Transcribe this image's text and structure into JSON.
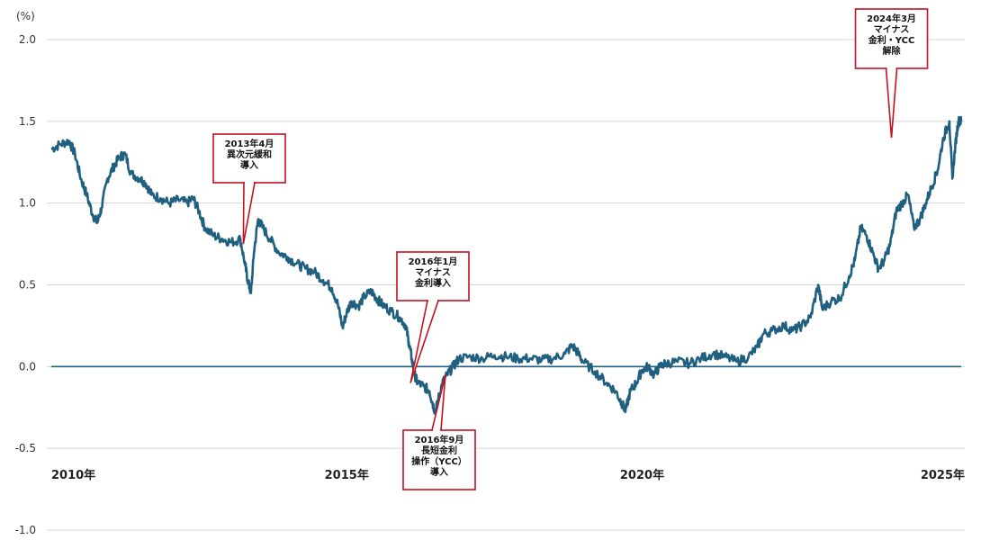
{
  "chart_data": {
    "type": "line",
    "y_unit": "(%)",
    "ylim": [
      -1.0,
      2.0
    ],
    "y_ticks": [
      {
        "value": 2.0,
        "label": "2.0"
      },
      {
        "value": 1.5,
        "label": "1.5"
      },
      {
        "value": 1.0,
        "label": "1.0"
      },
      {
        "value": 0.5,
        "label": "0.5"
      },
      {
        "value": 0.0,
        "label": "0.0"
      },
      {
        "value": -0.5,
        "label": "-0.5"
      },
      {
        "value": -1.0,
        "label": "-1.0"
      }
    ],
    "x_range": [
      2010.0,
      2025.4
    ],
    "x_ticks": [
      {
        "value": 2010.0,
        "label": "2010年"
      },
      {
        "value": 2015.0,
        "label": "2015年"
      },
      {
        "value": 2020.0,
        "label": "2020年"
      },
      {
        "value": 2025.0,
        "label": "2025年"
      }
    ],
    "grid": true,
    "reference_line": 0.0,
    "series_color": "#1f5f7f",
    "series": [
      {
        "points": [
          [
            2010.0,
            1.33
          ],
          [
            2010.15,
            1.36
          ],
          [
            2010.3,
            1.38
          ],
          [
            2010.4,
            1.3
          ],
          [
            2010.5,
            1.15
          ],
          [
            2010.6,
            1.05
          ],
          [
            2010.7,
            0.93
          ],
          [
            2010.78,
            0.88
          ],
          [
            2010.85,
            0.97
          ],
          [
            2010.95,
            1.15
          ],
          [
            2011.05,
            1.22
          ],
          [
            2011.15,
            1.28
          ],
          [
            2011.25,
            1.3
          ],
          [
            2011.35,
            1.18
          ],
          [
            2011.5,
            1.15
          ],
          [
            2011.6,
            1.12
          ],
          [
            2011.7,
            1.05
          ],
          [
            2011.85,
            1.03
          ],
          [
            2012.0,
            1.0
          ],
          [
            2012.15,
            1.02
          ],
          [
            2012.3,
            1.0
          ],
          [
            2012.4,
            1.03
          ],
          [
            2012.5,
            0.95
          ],
          [
            2012.6,
            0.85
          ],
          [
            2012.75,
            0.8
          ],
          [
            2012.9,
            0.78
          ],
          [
            2013.05,
            0.76
          ],
          [
            2013.2,
            0.78
          ],
          [
            2013.28,
            0.62
          ],
          [
            2013.33,
            0.52
          ],
          [
            2013.38,
            0.45
          ],
          [
            2013.43,
            0.7
          ],
          [
            2013.5,
            0.9
          ],
          [
            2013.58,
            0.85
          ],
          [
            2013.7,
            0.78
          ],
          [
            2013.85,
            0.7
          ],
          [
            2014.0,
            0.67
          ],
          [
            2014.15,
            0.63
          ],
          [
            2014.3,
            0.6
          ],
          [
            2014.45,
            0.58
          ],
          [
            2014.6,
            0.53
          ],
          [
            2014.75,
            0.48
          ],
          [
            2014.85,
            0.38
          ],
          [
            2014.93,
            0.24
          ],
          [
            2015.0,
            0.33
          ],
          [
            2015.08,
            0.4
          ],
          [
            2015.2,
            0.37
          ],
          [
            2015.3,
            0.43
          ],
          [
            2015.42,
            0.46
          ],
          [
            2015.5,
            0.42
          ],
          [
            2015.6,
            0.38
          ],
          [
            2015.75,
            0.34
          ],
          [
            2015.9,
            0.3
          ],
          [
            2016.0,
            0.25
          ],
          [
            2016.05,
            0.15
          ],
          [
            2016.1,
            0.05
          ],
          [
            2016.15,
            -0.05
          ],
          [
            2016.2,
            -0.1
          ],
          [
            2016.3,
            -0.12
          ],
          [
            2016.4,
            -0.15
          ],
          [
            2016.45,
            -0.22
          ],
          [
            2016.5,
            -0.28
          ],
          [
            2016.55,
            -0.2
          ],
          [
            2016.62,
            -0.1
          ],
          [
            2016.7,
            -0.05
          ],
          [
            2016.8,
            0.0
          ],
          [
            2016.9,
            0.05
          ],
          [
            2017.1,
            0.06
          ],
          [
            2017.3,
            0.05
          ],
          [
            2017.5,
            0.07
          ],
          [
            2017.7,
            0.06
          ],
          [
            2017.9,
            0.05
          ],
          [
            2018.1,
            0.05
          ],
          [
            2018.3,
            0.04
          ],
          [
            2018.5,
            0.05
          ],
          [
            2018.7,
            0.08
          ],
          [
            2018.82,
            0.13
          ],
          [
            2018.92,
            0.08
          ],
          [
            2019.0,
            0.03
          ],
          [
            2019.2,
            -0.03
          ],
          [
            2019.4,
            -0.1
          ],
          [
            2019.55,
            -0.15
          ],
          [
            2019.65,
            -0.22
          ],
          [
            2019.72,
            -0.27
          ],
          [
            2019.8,
            -0.15
          ],
          [
            2019.9,
            -0.1
          ],
          [
            2020.0,
            -0.02
          ],
          [
            2020.1,
            0.0
          ],
          [
            2020.2,
            -0.05
          ],
          [
            2020.3,
            0.0
          ],
          [
            2020.4,
            0.02
          ],
          [
            2020.6,
            0.03
          ],
          [
            2020.8,
            0.02
          ],
          [
            2021.0,
            0.05
          ],
          [
            2021.2,
            0.08
          ],
          [
            2021.4,
            0.06
          ],
          [
            2021.6,
            0.03
          ],
          [
            2021.8,
            0.06
          ],
          [
            2021.95,
            0.12
          ],
          [
            2022.05,
            0.2
          ],
          [
            2022.2,
            0.22
          ],
          [
            2022.4,
            0.25
          ],
          [
            2022.55,
            0.22
          ],
          [
            2022.7,
            0.25
          ],
          [
            2022.85,
            0.3
          ],
          [
            2022.98,
            0.5
          ],
          [
            2023.05,
            0.35
          ],
          [
            2023.2,
            0.4
          ],
          [
            2023.35,
            0.42
          ],
          [
            2023.5,
            0.55
          ],
          [
            2023.6,
            0.65
          ],
          [
            2023.7,
            0.85
          ],
          [
            2023.8,
            0.8
          ],
          [
            2023.9,
            0.7
          ],
          [
            2024.0,
            0.6
          ],
          [
            2024.1,
            0.65
          ],
          [
            2024.2,
            0.75
          ],
          [
            2024.3,
            0.95
          ],
          [
            2024.4,
            1.0
          ],
          [
            2024.5,
            1.05
          ],
          [
            2024.6,
            0.85
          ],
          [
            2024.7,
            0.9
          ],
          [
            2024.8,
            1.0
          ],
          [
            2024.9,
            1.1
          ],
          [
            2025.0,
            1.2
          ],
          [
            2025.1,
            1.4
          ],
          [
            2025.2,
            1.5
          ],
          [
            2025.25,
            1.15
          ],
          [
            2025.3,
            1.35
          ],
          [
            2025.35,
            1.5
          ],
          [
            2025.4,
            1.5
          ]
        ]
      }
    ],
    "annotations": [
      {
        "lines": [
          "2013年4月",
          "異次元緩和",
          "導入"
        ],
        "x": 2013.25,
        "y": 0.75,
        "anchor": "above"
      },
      {
        "lines": [
          "2016年1月",
          "マイナス",
          "金利導入"
        ],
        "x": 2016.08,
        "y": -0.1,
        "anchor": "above"
      },
      {
        "lines": [
          "2016年9月",
          "長短金利",
          "操作（YCC）",
          "導入"
        ],
        "x": 2016.67,
        "y": -0.05,
        "anchor": "below"
      },
      {
        "lines": [
          "2024年3月",
          "マイナス",
          "金利・YCC",
          "解除"
        ],
        "x": 2024.22,
        "y": 1.4,
        "anchor": "above"
      }
    ]
  }
}
